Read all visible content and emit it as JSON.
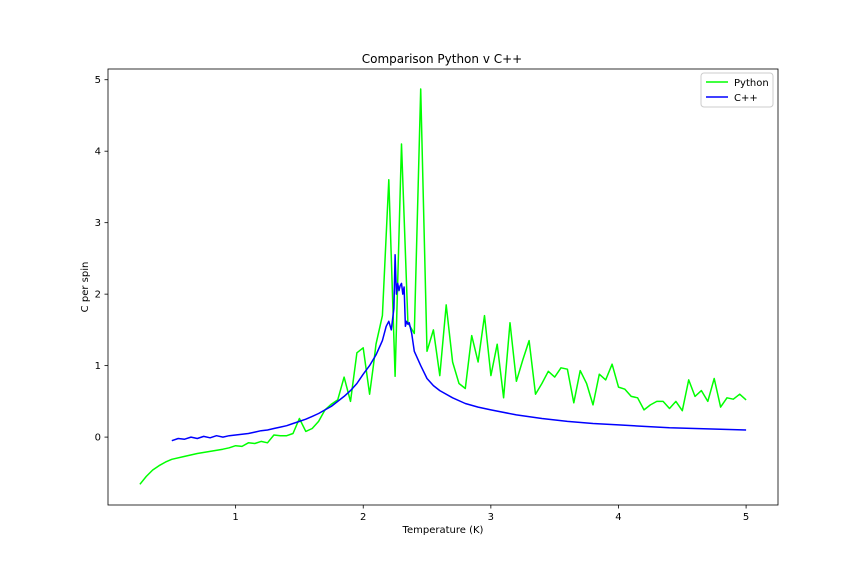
{
  "chart_data": {
    "type": "line",
    "title": "Comparison Python v C++",
    "xlabel": "Temperature (K)",
    "ylabel": "C per spin",
    "xlim": [
      0.0,
      5.25
    ],
    "ylim": [
      -0.95,
      5.15
    ],
    "xticks": [
      1,
      2,
      3,
      4,
      5
    ],
    "yticks": [
      0,
      1,
      2,
      3,
      4,
      5
    ],
    "grid": false,
    "legend_position": "top-right",
    "series": [
      {
        "name": "Python",
        "color": "#00ff00",
        "x": [
          0.25,
          0.3,
          0.35,
          0.4,
          0.45,
          0.5,
          0.6,
          0.7,
          0.8,
          0.9,
          0.95,
          1.0,
          1.05,
          1.1,
          1.15,
          1.2,
          1.25,
          1.3,
          1.35,
          1.4,
          1.45,
          1.5,
          1.55,
          1.6,
          1.65,
          1.7,
          1.75,
          1.8,
          1.85,
          1.9,
          1.95,
          2.0,
          2.05,
          2.08,
          2.1,
          2.15,
          2.2,
          2.25,
          2.3,
          2.35,
          2.4,
          2.45,
          2.5,
          2.55,
          2.6,
          2.65,
          2.7,
          2.75,
          2.8,
          2.85,
          2.9,
          2.95,
          3.0,
          3.05,
          3.1,
          3.15,
          3.2,
          3.25,
          3.3,
          3.35,
          3.4,
          3.45,
          3.5,
          3.55,
          3.6,
          3.65,
          3.7,
          3.75,
          3.8,
          3.85,
          3.9,
          3.95,
          4.0,
          4.05,
          4.1,
          4.15,
          4.2,
          4.25,
          4.3,
          4.35,
          4.4,
          4.45,
          4.5,
          4.55,
          4.6,
          4.65,
          4.7,
          4.75,
          4.8,
          4.85,
          4.9,
          4.95,
          5.0
        ],
        "y": [
          -0.66,
          -0.55,
          -0.46,
          -0.4,
          -0.35,
          -0.31,
          -0.27,
          -0.23,
          -0.2,
          -0.17,
          -0.15,
          -0.12,
          -0.13,
          -0.08,
          -0.09,
          -0.06,
          -0.08,
          0.03,
          0.02,
          0.02,
          0.05,
          0.26,
          0.08,
          0.12,
          0.22,
          0.38,
          0.46,
          0.52,
          0.84,
          0.5,
          1.18,
          1.25,
          0.6,
          1.0,
          1.3,
          1.7,
          3.6,
          0.85,
          4.1,
          1.6,
          1.45,
          4.87,
          1.2,
          1.5,
          0.86,
          1.85,
          1.05,
          0.75,
          0.68,
          1.42,
          1.05,
          1.7,
          0.86,
          1.3,
          0.55,
          1.6,
          0.78,
          1.08,
          1.35,
          0.6,
          0.75,
          0.92,
          0.84,
          0.97,
          0.95,
          0.48,
          0.93,
          0.75,
          0.45,
          0.88,
          0.8,
          1.02,
          0.7,
          0.67,
          0.57,
          0.55,
          0.38,
          0.45,
          0.5,
          0.5,
          0.4,
          0.5,
          0.37,
          0.8,
          0.57,
          0.65,
          0.5,
          0.82,
          0.42,
          0.55,
          0.53,
          0.6,
          0.52
        ]
      },
      {
        "name": "C++",
        "color": "#0000ff",
        "x": [
          0.5,
          0.55,
          0.6,
          0.65,
          0.7,
          0.75,
          0.8,
          0.85,
          0.9,
          0.95,
          1.0,
          1.05,
          1.1,
          1.15,
          1.2,
          1.25,
          1.3,
          1.35,
          1.4,
          1.45,
          1.5,
          1.55,
          1.6,
          1.65,
          1.7,
          1.75,
          1.8,
          1.85,
          1.9,
          1.95,
          2.0,
          2.05,
          2.1,
          2.15,
          2.18,
          2.2,
          2.22,
          2.24,
          2.25,
          2.26,
          2.27,
          2.28,
          2.29,
          2.3,
          2.31,
          2.32,
          2.33,
          2.34,
          2.35,
          2.36,
          2.38,
          2.4,
          2.45,
          2.5,
          2.55,
          2.6,
          2.7,
          2.8,
          2.9,
          3.0,
          3.2,
          3.4,
          3.6,
          3.8,
          4.0,
          4.2,
          4.4,
          4.6,
          4.8,
          5.0
        ],
        "y": [
          -0.05,
          -0.02,
          -0.03,
          0.0,
          -0.02,
          0.01,
          -0.01,
          0.02,
          0.0,
          0.02,
          0.03,
          0.04,
          0.05,
          0.07,
          0.09,
          0.1,
          0.12,
          0.14,
          0.16,
          0.19,
          0.22,
          0.25,
          0.29,
          0.33,
          0.38,
          0.43,
          0.5,
          0.57,
          0.65,
          0.75,
          0.88,
          1.0,
          1.15,
          1.35,
          1.55,
          1.62,
          1.5,
          1.8,
          2.55,
          2.0,
          2.15,
          2.05,
          2.12,
          2.15,
          2.0,
          2.1,
          1.55,
          1.62,
          1.58,
          1.6,
          1.45,
          1.2,
          1.0,
          0.82,
          0.72,
          0.65,
          0.55,
          0.47,
          0.42,
          0.38,
          0.31,
          0.26,
          0.22,
          0.19,
          0.17,
          0.15,
          0.13,
          0.12,
          0.11,
          0.1
        ]
      }
    ]
  }
}
